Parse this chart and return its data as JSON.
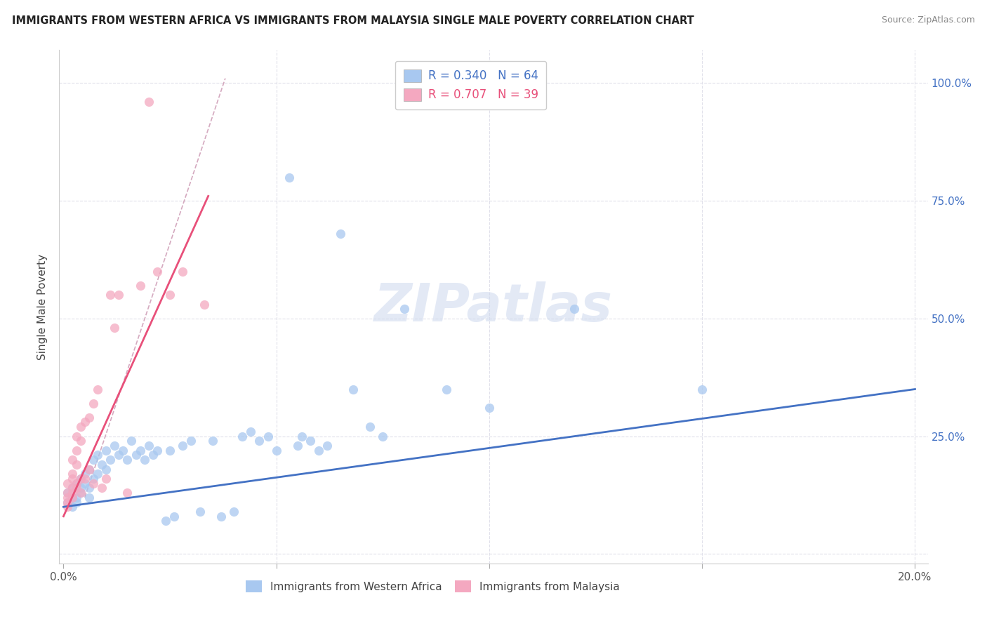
{
  "title": "IMMIGRANTS FROM WESTERN AFRICA VS IMMIGRANTS FROM MALAYSIA SINGLE MALE POVERTY CORRELATION CHART",
  "source": "Source: ZipAtlas.com",
  "ylabel": "Single Male Poverty",
  "y_ticks": [
    0.0,
    0.25,
    0.5,
    0.75,
    1.0
  ],
  "y_tick_labels_right": [
    "",
    "25.0%",
    "50.0%",
    "75.0%",
    "100.0%"
  ],
  "x_ticks": [
    0.0,
    0.05,
    0.1,
    0.15,
    0.2
  ],
  "x_tick_labels": [
    "0.0%",
    "",
    "",
    "",
    "20.0%"
  ],
  "legend_blue_R": "R = 0.340",
  "legend_blue_N": "N = 64",
  "legend_pink_R": "R = 0.707",
  "legend_pink_N": "N = 39",
  "blue_color": "#a8c8f0",
  "pink_color": "#f4a8c0",
  "blue_line_color": "#4472c4",
  "pink_line_color": "#e8507a",
  "trend_dash_color": "#d0a0b8",
  "watermark_text": "ZIPatlas",
  "blue_line_x0": 0.0,
  "blue_line_y0": 0.1,
  "blue_line_x1": 0.2,
  "blue_line_y1": 0.35,
  "pink_line_x0": 0.0,
  "pink_line_y0": 0.08,
  "pink_line_x1": 0.034,
  "pink_line_y1": 0.76,
  "dash_line_x0": 0.005,
  "dash_line_y0": 0.12,
  "dash_line_x1": 0.038,
  "dash_line_y1": 1.01,
  "blue_scatter_x": [
    0.001,
    0.001,
    0.002,
    0.002,
    0.002,
    0.003,
    0.003,
    0.003,
    0.004,
    0.004,
    0.004,
    0.005,
    0.005,
    0.006,
    0.006,
    0.006,
    0.007,
    0.007,
    0.008,
    0.008,
    0.009,
    0.01,
    0.01,
    0.011,
    0.012,
    0.013,
    0.014,
    0.015,
    0.016,
    0.017,
    0.018,
    0.019,
    0.02,
    0.021,
    0.022,
    0.024,
    0.025,
    0.026,
    0.028,
    0.03,
    0.032,
    0.035,
    0.037,
    0.04,
    0.042,
    0.044,
    0.046,
    0.048,
    0.05,
    0.053,
    0.055,
    0.056,
    0.058,
    0.06,
    0.062,
    0.065,
    0.068,
    0.072,
    0.075,
    0.08,
    0.09,
    0.1,
    0.12,
    0.15
  ],
  "blue_scatter_y": [
    0.13,
    0.11,
    0.14,
    0.12,
    0.1,
    0.15,
    0.12,
    0.11,
    0.16,
    0.14,
    0.13,
    0.17,
    0.15,
    0.18,
    0.14,
    0.12,
    0.2,
    0.16,
    0.21,
    0.17,
    0.19,
    0.22,
    0.18,
    0.2,
    0.23,
    0.21,
    0.22,
    0.2,
    0.24,
    0.21,
    0.22,
    0.2,
    0.23,
    0.21,
    0.22,
    0.07,
    0.22,
    0.08,
    0.23,
    0.24,
    0.09,
    0.24,
    0.08,
    0.09,
    0.25,
    0.26,
    0.24,
    0.25,
    0.22,
    0.8,
    0.23,
    0.25,
    0.24,
    0.22,
    0.23,
    0.68,
    0.35,
    0.27,
    0.25,
    0.52,
    0.35,
    0.31,
    0.52,
    0.35
  ],
  "pink_scatter_x": [
    0.001,
    0.001,
    0.001,
    0.001,
    0.001,
    0.002,
    0.002,
    0.002,
    0.002,
    0.002,
    0.002,
    0.003,
    0.003,
    0.003,
    0.003,
    0.003,
    0.004,
    0.004,
    0.004,
    0.004,
    0.005,
    0.005,
    0.006,
    0.006,
    0.007,
    0.007,
    0.008,
    0.009,
    0.01,
    0.011,
    0.012,
    0.013,
    0.015,
    0.018,
    0.02,
    0.022,
    0.025,
    0.028,
    0.033
  ],
  "pink_scatter_y": [
    0.13,
    0.11,
    0.15,
    0.12,
    0.1,
    0.14,
    0.2,
    0.17,
    0.16,
    0.13,
    0.12,
    0.22,
    0.19,
    0.25,
    0.15,
    0.14,
    0.27,
    0.24,
    0.16,
    0.13,
    0.28,
    0.16,
    0.29,
    0.18,
    0.32,
    0.15,
    0.35,
    0.14,
    0.16,
    0.55,
    0.48,
    0.55,
    0.13,
    0.57,
    0.96,
    0.6,
    0.55,
    0.6,
    0.53
  ]
}
